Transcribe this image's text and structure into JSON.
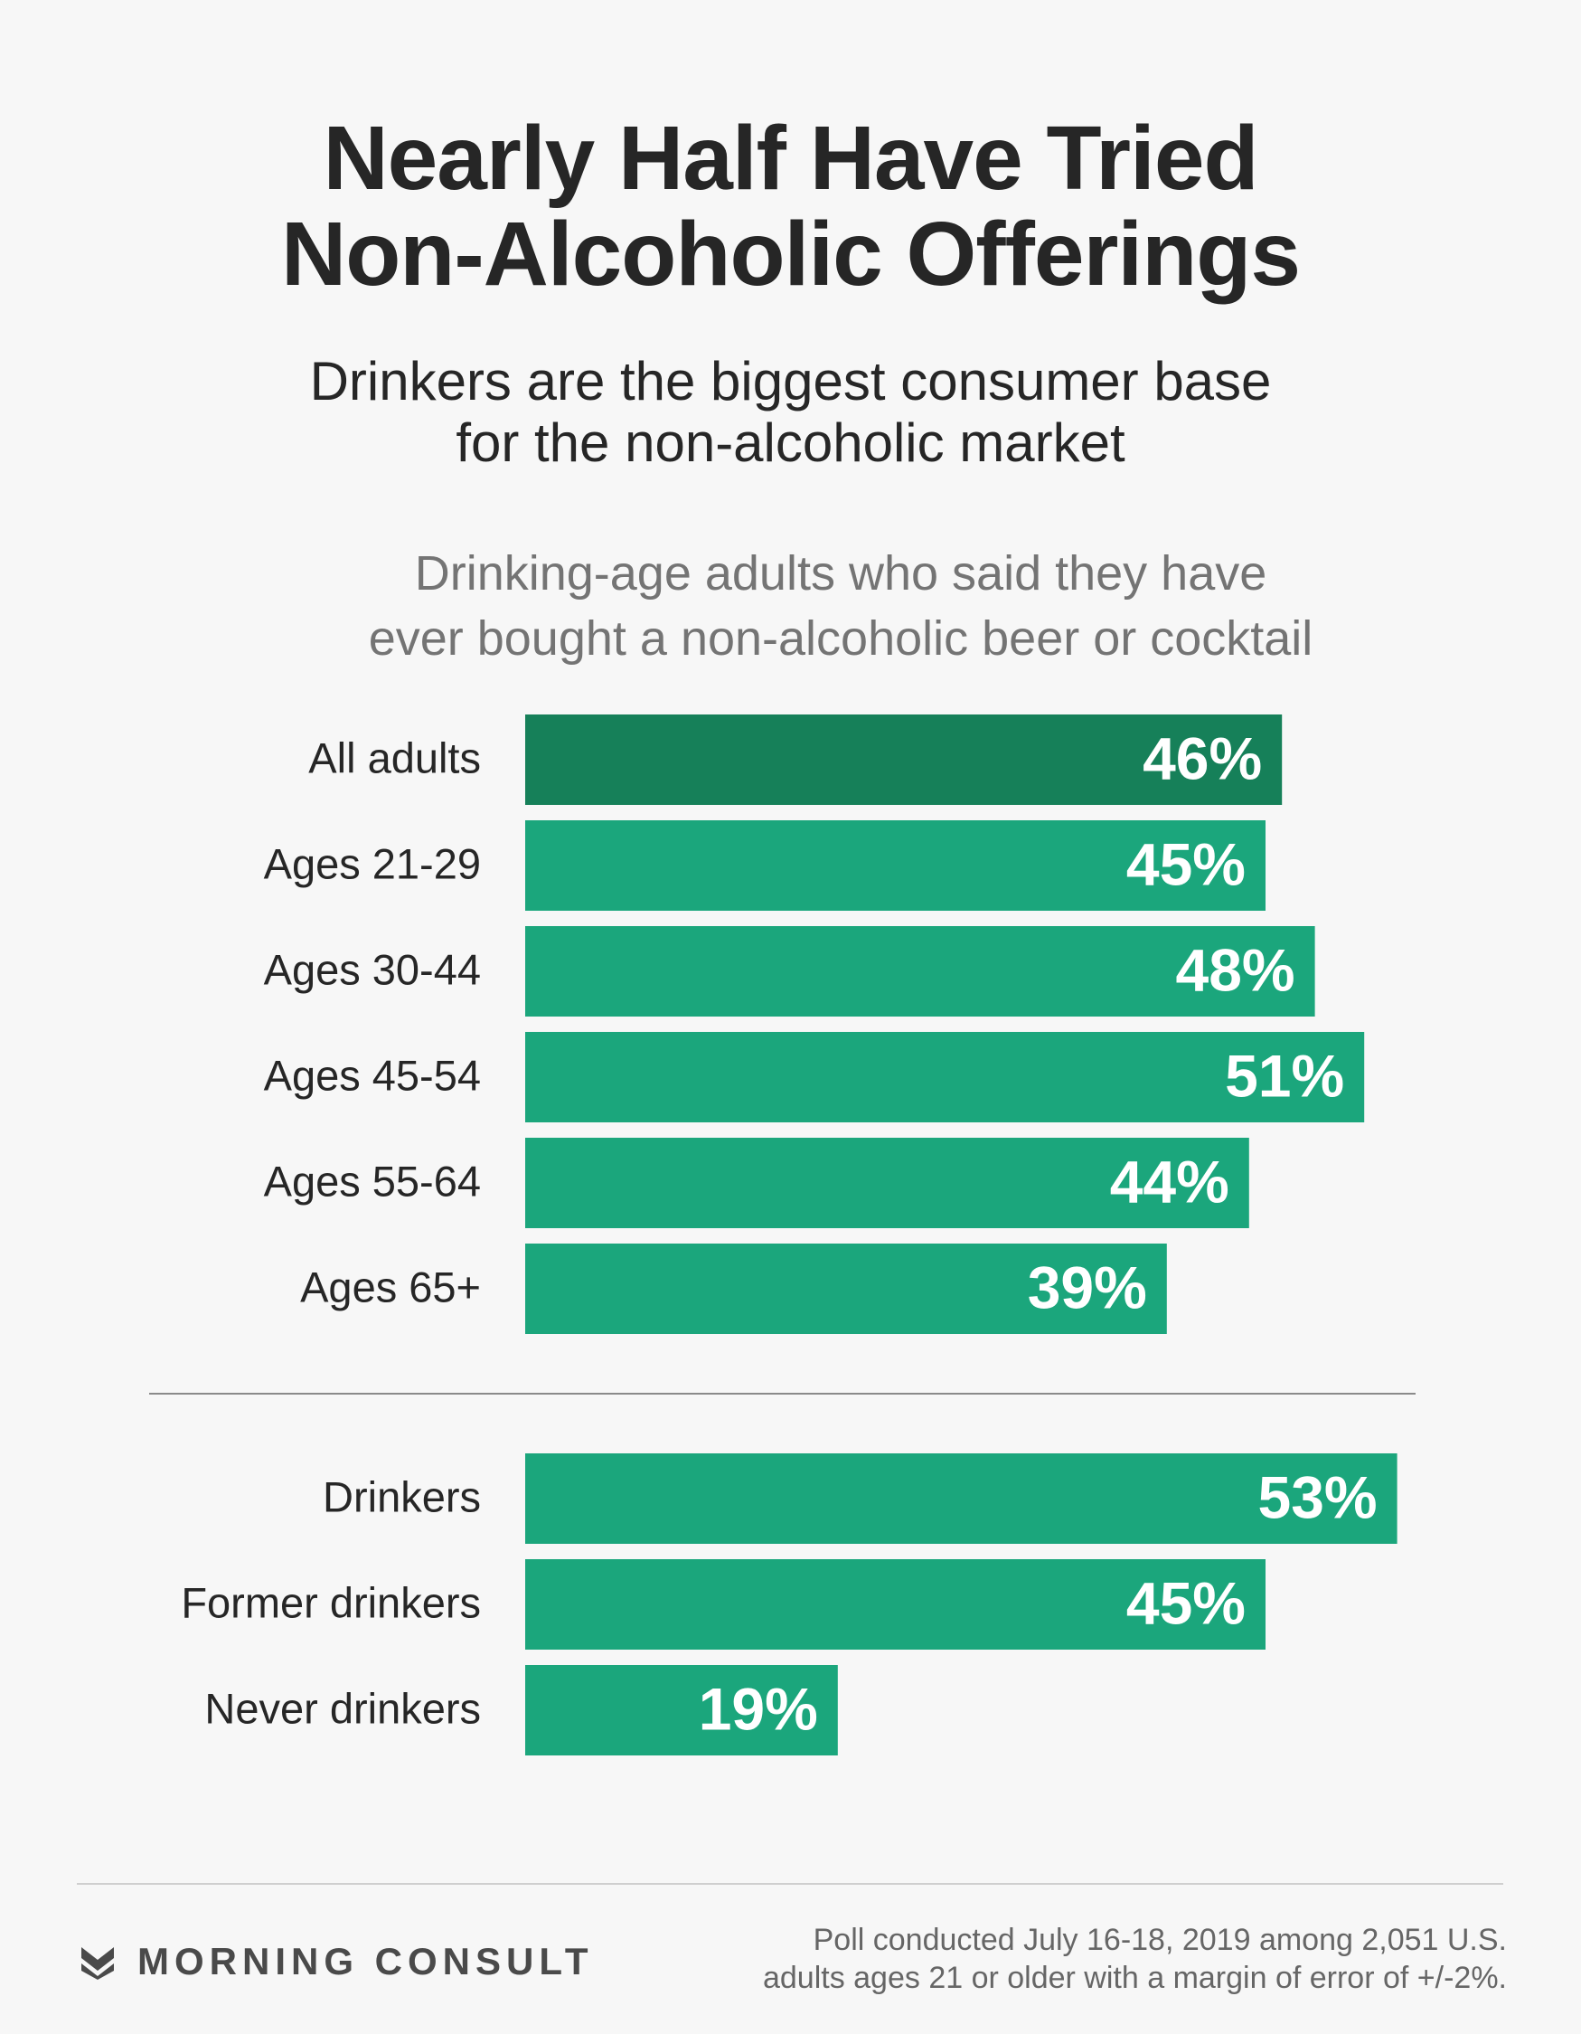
{
  "header": {
    "title_line1": "Nearly Half Have Tried",
    "title_line2": "Non-Alcoholic Offerings",
    "subtitle_line1": "Drinkers are the biggest consumer base",
    "subtitle_line2": "for the non-alcoholic market"
  },
  "chart_note": {
    "line1": "Drinking-age adults who said they have",
    "line2": "ever bought a non-alcoholic beer or cocktail"
  },
  "chart_data": {
    "type": "bar",
    "orientation": "horizontal",
    "unit": "%",
    "groups": [
      {
        "categories": [
          "All adults",
          "Ages 21-29",
          "Ages 30-44",
          "Ages 45-54",
          "Ages 55-64",
          "Ages 65+"
        ],
        "values": [
          46,
          45,
          48,
          51,
          44,
          39
        ],
        "labels": [
          "46%",
          "45%",
          "48%",
          "51%",
          "44%",
          "39%"
        ]
      },
      {
        "categories": [
          "Drinkers",
          "Former drinkers",
          "Never drinkers"
        ],
        "values": [
          53,
          45,
          19
        ],
        "labels": [
          "53%",
          "45%",
          "19%"
        ]
      }
    ],
    "colors": {
      "highlight": "#168059",
      "bar": "#1ba67c"
    }
  },
  "footer": {
    "brand": "MORNING CONSULT",
    "logo_icon": "morning-consult-chevron-icon",
    "source_line1": "Poll conducted July 16-18, 2019 among 2,051 U.S.",
    "source_line2": "adults ages 21 or older with a margin of error of +/-2%."
  }
}
